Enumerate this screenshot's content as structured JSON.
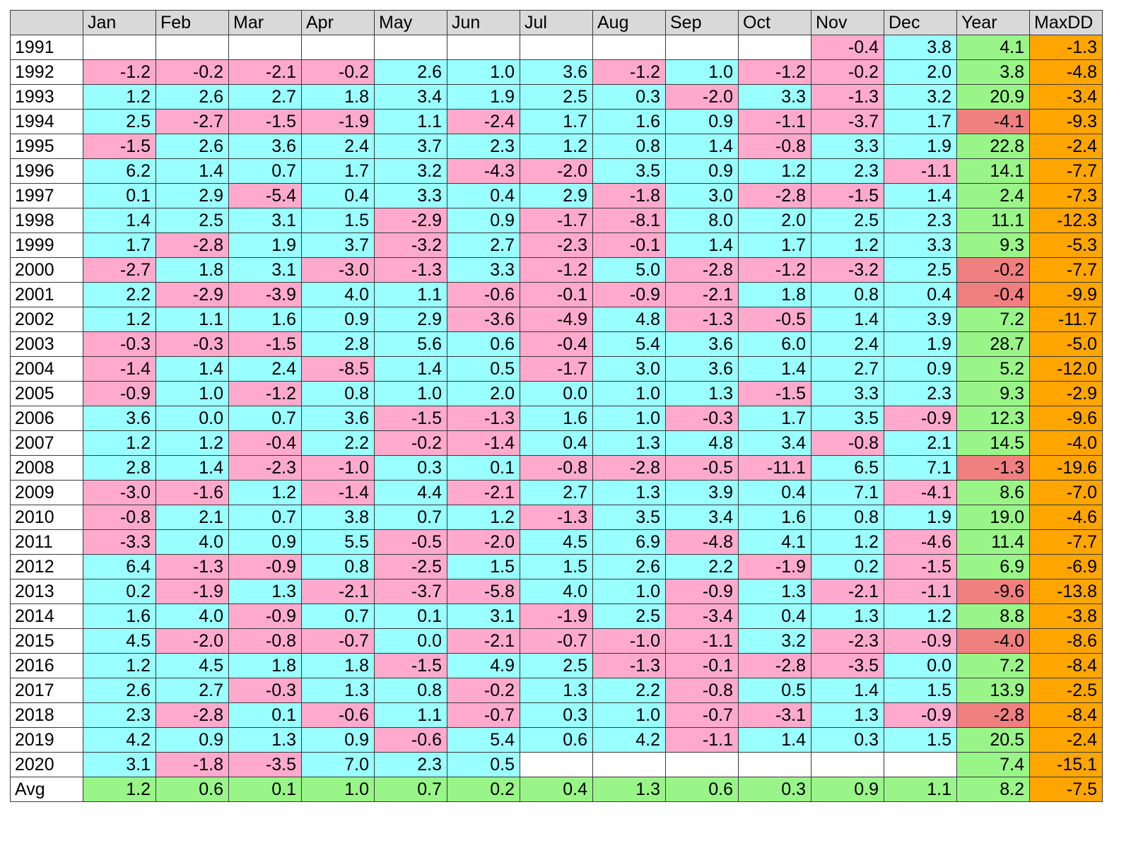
{
  "chart_data": {
    "type": "table",
    "columns": [
      "",
      "Jan",
      "Feb",
      "Mar",
      "Apr",
      "May",
      "Jun",
      "Jul",
      "Aug",
      "Sep",
      "Oct",
      "Nov",
      "Dec",
      "Year",
      "MaxDD"
    ],
    "rows": [
      {
        "label": "1991",
        "values": [
          null,
          null,
          null,
          null,
          null,
          null,
          null,
          null,
          null,
          null,
          "-0.4",
          "3.8",
          "4.1",
          "-1.3"
        ]
      },
      {
        "label": "1992",
        "values": [
          "-1.2",
          "-0.2",
          "-2.1",
          "-0.2",
          "2.6",
          "1.0",
          "3.6",
          "-1.2",
          "1.0",
          "-1.2",
          "-0.2",
          "2.0",
          "3.8",
          "-4.8"
        ]
      },
      {
        "label": "1993",
        "values": [
          "1.2",
          "2.6",
          "2.7",
          "1.8",
          "3.4",
          "1.9",
          "2.5",
          "0.3",
          "-2.0",
          "3.3",
          "-1.3",
          "3.2",
          "20.9",
          "-3.4"
        ]
      },
      {
        "label": "1994",
        "values": [
          "2.5",
          "-2.7",
          "-1.5",
          "-1.9",
          "1.1",
          "-2.4",
          "1.7",
          "1.6",
          "0.9",
          "-1.1",
          "-3.7",
          "1.7",
          "-4.1",
          "-9.3"
        ]
      },
      {
        "label": "1995",
        "values": [
          "-1.5",
          "2.6",
          "3.6",
          "2.4",
          "3.7",
          "2.3",
          "1.2",
          "0.8",
          "1.4",
          "-0.8",
          "3.3",
          "1.9",
          "22.8",
          "-2.4"
        ]
      },
      {
        "label": "1996",
        "values": [
          "6.2",
          "1.4",
          "0.7",
          "1.7",
          "3.2",
          "-4.3",
          "-2.0",
          "3.5",
          "0.9",
          "1.2",
          "2.3",
          "-1.1",
          "14.1",
          "-7.7"
        ]
      },
      {
        "label": "1997",
        "values": [
          "0.1",
          "2.9",
          "-5.4",
          "0.4",
          "3.3",
          "0.4",
          "2.9",
          "-1.8",
          "3.0",
          "-2.8",
          "-1.5",
          "1.4",
          "2.4",
          "-7.3"
        ]
      },
      {
        "label": "1998",
        "values": [
          "1.4",
          "2.5",
          "3.1",
          "1.5",
          "-2.9",
          "0.9",
          "-1.7",
          "-8.1",
          "8.0",
          "2.0",
          "2.5",
          "2.3",
          "11.1",
          "-12.3"
        ]
      },
      {
        "label": "1999",
        "values": [
          "1.7",
          "-2.8",
          "1.9",
          "3.7",
          "-3.2",
          "2.7",
          "-2.3",
          "-0.1",
          "1.4",
          "1.7",
          "1.2",
          "3.3",
          "9.3",
          "-5.3"
        ]
      },
      {
        "label": "2000",
        "values": [
          "-2.7",
          "1.8",
          "3.1",
          "-3.0",
          "-1.3",
          "3.3",
          "-1.2",
          "5.0",
          "-2.8",
          "-1.2",
          "-3.2",
          "2.5",
          "-0.2",
          "-7.7"
        ]
      },
      {
        "label": "2001",
        "values": [
          "2.2",
          "-2.9",
          "-3.9",
          "4.0",
          "1.1",
          "-0.6",
          "-0.1",
          "-0.9",
          "-2.1",
          "1.8",
          "0.8",
          "0.4",
          "-0.4",
          "-9.9"
        ]
      },
      {
        "label": "2002",
        "values": [
          "1.2",
          "1.1",
          "1.6",
          "0.9",
          "2.9",
          "-3.6",
          "-4.9",
          "4.8",
          "-1.3",
          "-0.5",
          "1.4",
          "3.9",
          "7.2",
          "-11.7"
        ]
      },
      {
        "label": "2003",
        "values": [
          "-0.3",
          "-0.3",
          "-1.5",
          "2.8",
          "5.6",
          "0.6",
          "-0.4",
          "5.4",
          "3.6",
          "6.0",
          "2.4",
          "1.9",
          "28.7",
          "-5.0"
        ]
      },
      {
        "label": "2004",
        "values": [
          "-1.4",
          "1.4",
          "2.4",
          "-8.5",
          "1.4",
          "0.5",
          "-1.7",
          "3.0",
          "3.6",
          "1.4",
          "2.7",
          "0.9",
          "5.2",
          "-12.0"
        ]
      },
      {
        "label": "2005",
        "values": [
          "-0.9",
          "1.0",
          "-1.2",
          "0.8",
          "1.0",
          "2.0",
          "0.0",
          "1.0",
          "1.3",
          "-1.5",
          "3.3",
          "2.3",
          "9.3",
          "-2.9"
        ]
      },
      {
        "label": "2006",
        "values": [
          "3.6",
          "0.0",
          "0.7",
          "3.6",
          "-1.5",
          "-1.3",
          "1.6",
          "1.0",
          "-0.3",
          "1.7",
          "3.5",
          "-0.9",
          "12.3",
          "-9.6"
        ]
      },
      {
        "label": "2007",
        "values": [
          "1.2",
          "1.2",
          "-0.4",
          "2.2",
          "-0.2",
          "-1.4",
          "0.4",
          "1.3",
          "4.8",
          "3.4",
          "-0.8",
          "2.1",
          "14.5",
          "-4.0"
        ]
      },
      {
        "label": "2008",
        "values": [
          "2.8",
          "1.4",
          "-2.3",
          "-1.0",
          "0.3",
          "0.1",
          "-0.8",
          "-2.8",
          "-0.5",
          "-11.1",
          "6.5",
          "7.1",
          "-1.3",
          "-19.6"
        ]
      },
      {
        "label": "2009",
        "values": [
          "-3.0",
          "-1.6",
          "1.2",
          "-1.4",
          "4.4",
          "-2.1",
          "2.7",
          "1.3",
          "3.9",
          "0.4",
          "7.1",
          "-4.1",
          "8.6",
          "-7.0"
        ]
      },
      {
        "label": "2010",
        "values": [
          "-0.8",
          "2.1",
          "0.7",
          "3.8",
          "0.7",
          "1.2",
          "-1.3",
          "3.5",
          "3.4",
          "1.6",
          "0.8",
          "1.9",
          "19.0",
          "-4.6"
        ]
      },
      {
        "label": "2011",
        "values": [
          "-3.3",
          "4.0",
          "0.9",
          "5.5",
          "-0.5",
          "-2.0",
          "4.5",
          "6.9",
          "-4.8",
          "4.1",
          "1.2",
          "-4.6",
          "11.4",
          "-7.7"
        ]
      },
      {
        "label": "2012",
        "values": [
          "6.4",
          "-1.3",
          "-0.9",
          "0.8",
          "-2.5",
          "1.5",
          "1.5",
          "2.6",
          "2.2",
          "-1.9",
          "0.2",
          "-1.5",
          "6.9",
          "-6.9"
        ]
      },
      {
        "label": "2013",
        "values": [
          "0.2",
          "-1.9",
          "1.3",
          "-2.1",
          "-3.7",
          "-5.8",
          "4.0",
          "1.0",
          "-0.9",
          "1.3",
          "-2.1",
          "-1.1",
          "-9.6",
          "-13.8"
        ]
      },
      {
        "label": "2014",
        "values": [
          "1.6",
          "4.0",
          "-0.9",
          "0.7",
          "0.1",
          "3.1",
          "-1.9",
          "2.5",
          "-3.4",
          "0.4",
          "1.3",
          "1.2",
          "8.8",
          "-3.8"
        ]
      },
      {
        "label": "2015",
        "values": [
          "4.5",
          "-2.0",
          "-0.8",
          "-0.7",
          "0.0",
          "-2.1",
          "-0.7",
          "-1.0",
          "-1.1",
          "3.2",
          "-2.3",
          "-0.9",
          "-4.0",
          "-8.6"
        ]
      },
      {
        "label": "2016",
        "values": [
          "1.2",
          "4.5",
          "1.8",
          "1.8",
          "-1.5",
          "4.9",
          "2.5",
          "-1.3",
          "-0.1",
          "-2.8",
          "-3.5",
          "0.0",
          "7.2",
          "-8.4"
        ]
      },
      {
        "label": "2017",
        "values": [
          "2.6",
          "2.7",
          "-0.3",
          "1.3",
          "0.8",
          "-0.2",
          "1.3",
          "2.2",
          "-0.8",
          "0.5",
          "1.4",
          "1.5",
          "13.9",
          "-2.5"
        ]
      },
      {
        "label": "2018",
        "values": [
          "2.3",
          "-2.8",
          "0.1",
          "-0.6",
          "1.1",
          "-0.7",
          "0.3",
          "1.0",
          "-0.7",
          "-3.1",
          "1.3",
          "-0.9",
          "-2.8",
          "-8.4"
        ]
      },
      {
        "label": "2019",
        "values": [
          "4.2",
          "0.9",
          "1.3",
          "0.9",
          "-0.6",
          "5.4",
          "0.6",
          "4.2",
          "-1.1",
          "1.4",
          "0.3",
          "1.5",
          "20.5",
          "-2.4"
        ]
      },
      {
        "label": "2020",
        "values": [
          "3.1",
          "-1.8",
          "-3.5",
          "7.0",
          "2.3",
          "0.5",
          null,
          null,
          null,
          null,
          null,
          null,
          "7.4",
          "-15.1"
        ]
      },
      {
        "label": "Avg",
        "values": [
          "1.2",
          "0.6",
          "0.1",
          "1.0",
          "0.7",
          "0.2",
          "0.4",
          "1.3",
          "0.6",
          "0.3",
          "0.9",
          "1.1",
          "8.2",
          "-7.5"
        ]
      }
    ]
  },
  "colors": {
    "header_bg": "#d9d9d9",
    "positive_month": "#99ffff",
    "negative_month": "#ffaacc",
    "positive_year_or_avg": "#99f588",
    "negative_year": "#f08080",
    "max_drawdown": "#ffa500",
    "empty": "#ffffff",
    "grid": "#3a3a3a"
  }
}
